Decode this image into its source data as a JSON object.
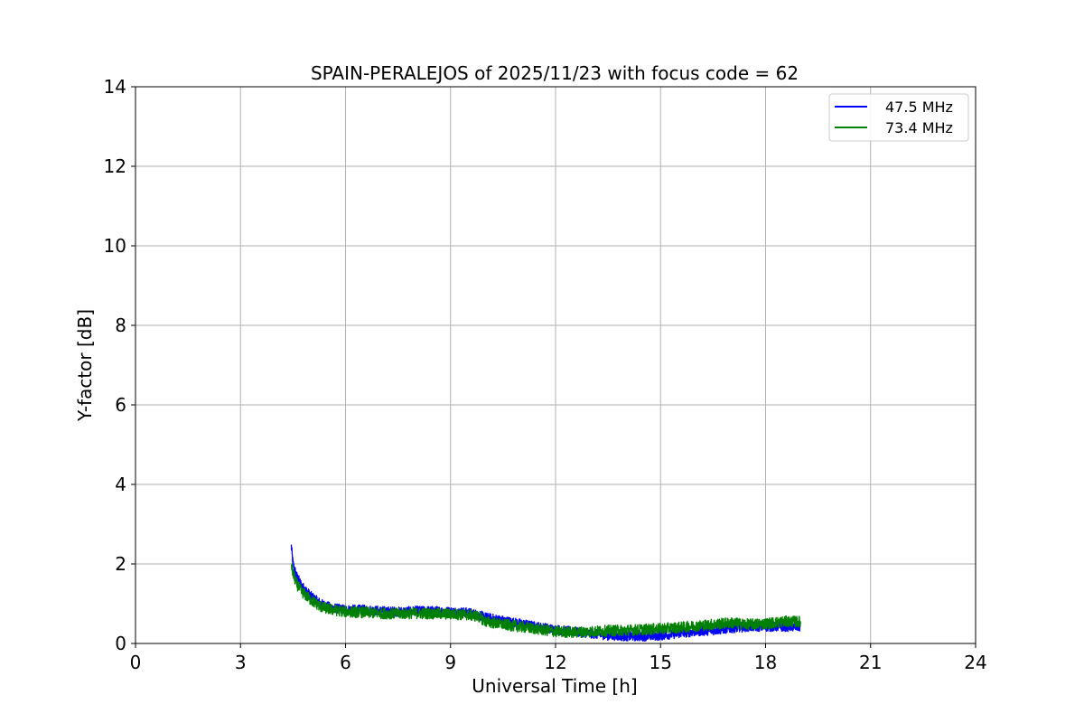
{
  "chart_data": {
    "type": "line",
    "title": "SPAIN-PERALEJOS of 2025/11/23 with focus code = 62",
    "xlabel": "Universal Time [h]",
    "ylabel": "Y-factor [dB]",
    "xlim": [
      0,
      24
    ],
    "ylim": [
      0,
      14
    ],
    "xticks": [
      0,
      3,
      6,
      9,
      12,
      15,
      18,
      21,
      24
    ],
    "yticks": [
      0,
      2,
      4,
      6,
      8,
      10,
      12,
      14
    ],
    "grid": true,
    "legend_position": "top-right",
    "series": [
      {
        "name": "47.5 MHz",
        "color": "#0000ff",
        "noise_band": 0.12,
        "x": [
          4.45,
          4.5,
          4.6,
          4.75,
          5.0,
          5.3,
          5.6,
          6.0,
          6.5,
          7.0,
          7.5,
          8.0,
          8.5,
          9.0,
          9.5,
          9.8,
          10.0,
          10.5,
          11.0,
          11.5,
          12.0,
          12.5,
          13.0,
          13.5,
          14.0,
          14.5,
          15.0,
          15.5,
          16.0,
          16.5,
          17.0,
          17.5,
          18.0,
          18.5,
          19.0
        ],
        "y": [
          2.45,
          2.0,
          1.7,
          1.45,
          1.2,
          1.0,
          0.9,
          0.85,
          0.85,
          0.82,
          0.8,
          0.82,
          0.82,
          0.8,
          0.78,
          0.72,
          0.66,
          0.58,
          0.5,
          0.42,
          0.35,
          0.3,
          0.25,
          0.2,
          0.18,
          0.18,
          0.2,
          0.25,
          0.3,
          0.33,
          0.38,
          0.42,
          0.42,
          0.42,
          0.42
        ]
      },
      {
        "name": "73.4 MHz",
        "color": "#008000",
        "noise_band": 0.14,
        "x": [
          4.45,
          4.5,
          4.6,
          4.75,
          5.0,
          5.3,
          5.6,
          6.0,
          6.5,
          7.0,
          7.5,
          8.0,
          8.5,
          9.0,
          9.5,
          9.8,
          10.0,
          10.5,
          11.0,
          11.5,
          12.0,
          12.5,
          13.0,
          13.5,
          14.0,
          14.5,
          15.0,
          15.5,
          16.0,
          16.5,
          17.0,
          17.5,
          18.0,
          18.5,
          19.0
        ],
        "y": [
          2.0,
          1.75,
          1.5,
          1.3,
          1.1,
          0.92,
          0.85,
          0.8,
          0.78,
          0.76,
          0.75,
          0.76,
          0.75,
          0.74,
          0.72,
          0.68,
          0.55,
          0.48,
          0.42,
          0.36,
          0.3,
          0.28,
          0.3,
          0.32,
          0.33,
          0.35,
          0.37,
          0.4,
          0.44,
          0.48,
          0.52,
          0.48,
          0.5,
          0.55,
          0.55
        ]
      }
    ]
  }
}
